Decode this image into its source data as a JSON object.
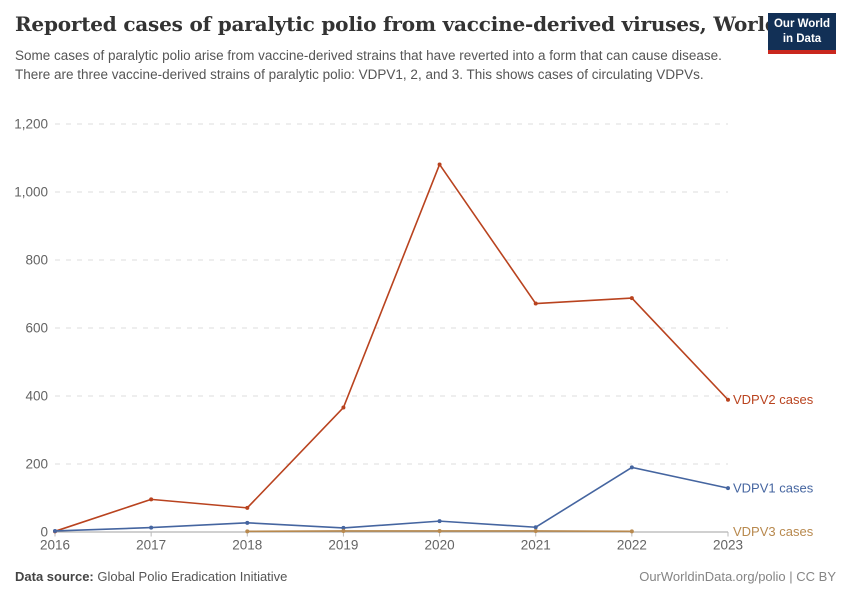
{
  "header": {
    "title": "Reported cases of paralytic polio from vaccine-derived viruses, World",
    "subtitle": "Some cases of paralytic polio arise from vaccine-derived strains that have reverted into a form that can cause disease. There are three vaccine-derived strains of paralytic polio: VDPV1, 2, and 3. This shows cases of circulating VDPVs.",
    "logo": {
      "line1": "Our World",
      "line2": "in Data",
      "bg_color": "#123056",
      "accent_color": "#C9271E"
    }
  },
  "chart_data": {
    "type": "line",
    "title": "Reported cases of paralytic polio from vaccine-derived viruses, World",
    "xlabel": "",
    "ylabel": "",
    "xlim": [
      2016,
      2023
    ],
    "ylim": [
      0,
      1200
    ],
    "xticks": [
      2016,
      2017,
      2018,
      2019,
      2020,
      2021,
      2022,
      2023
    ],
    "yticks": [
      0,
      200,
      400,
      600,
      800,
      1000,
      1200
    ],
    "ytick_labels": [
      "0",
      "200",
      "400",
      "600",
      "800",
      "1,000",
      "1,200"
    ],
    "grid": "horizontal-dashed",
    "legend_position": "right-of-line-end",
    "series": [
      {
        "name": "VDPV2 cases",
        "color": "#B9431F",
        "x": [
          2016,
          2017,
          2018,
          2019,
          2020,
          2021,
          2022,
          2023
        ],
        "values": [
          2,
          96,
          71,
          366,
          1081,
          672,
          688,
          389
        ]
      },
      {
        "name": "VDPV1 cases",
        "color": "#4565A0",
        "x": [
          2016,
          2017,
          2018,
          2019,
          2020,
          2021,
          2022,
          2023
        ],
        "values": [
          3,
          13,
          27,
          12,
          32,
          14,
          190,
          129
        ]
      },
      {
        "name": "VDPV3 cases",
        "color": "#B8894E",
        "x": [
          2018,
          2019,
          2020,
          2021,
          2022
        ],
        "values": [
          2,
          3,
          3,
          3,
          2
        ]
      }
    ]
  },
  "footer": {
    "data_source_label": "Data source:",
    "data_source_value": " Global Polio Eradication Initiative",
    "attribution": "OurWorldinData.org/polio | CC BY"
  }
}
